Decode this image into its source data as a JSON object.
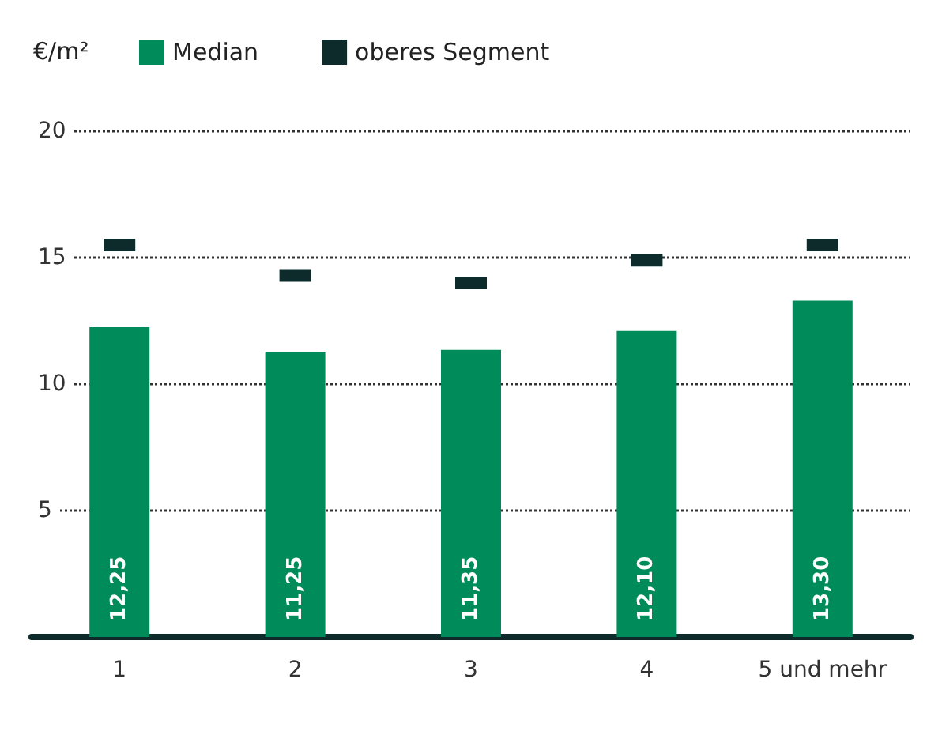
{
  "chart_data": {
    "type": "bar",
    "ylabel": "€/m²",
    "categories": [
      "1",
      "2",
      "3",
      "4",
      "5 und mehr"
    ],
    "series": [
      {
        "name": "Median",
        "color": "#008c5a",
        "values": [
          12.25,
          11.25,
          11.35,
          12.1,
          13.3
        ],
        "value_labels": [
          "12,25",
          "11,25",
          "11,35",
          "12,10",
          "13,30"
        ]
      },
      {
        "name": "oberes Segment",
        "type": "scatter",
        "color": "#0d2b2b",
        "x": [
          "1",
          "2",
          "3",
          "4",
          "5 und mehr"
        ],
        "values": [
          15.5,
          14.3,
          14.0,
          14.9,
          15.5
        ]
      }
    ],
    "ylim": [
      0,
      20
    ],
    "yticks": [
      5,
      10,
      15,
      20
    ],
    "grid": "y",
    "legend": "top left",
    "marker": "square"
  }
}
